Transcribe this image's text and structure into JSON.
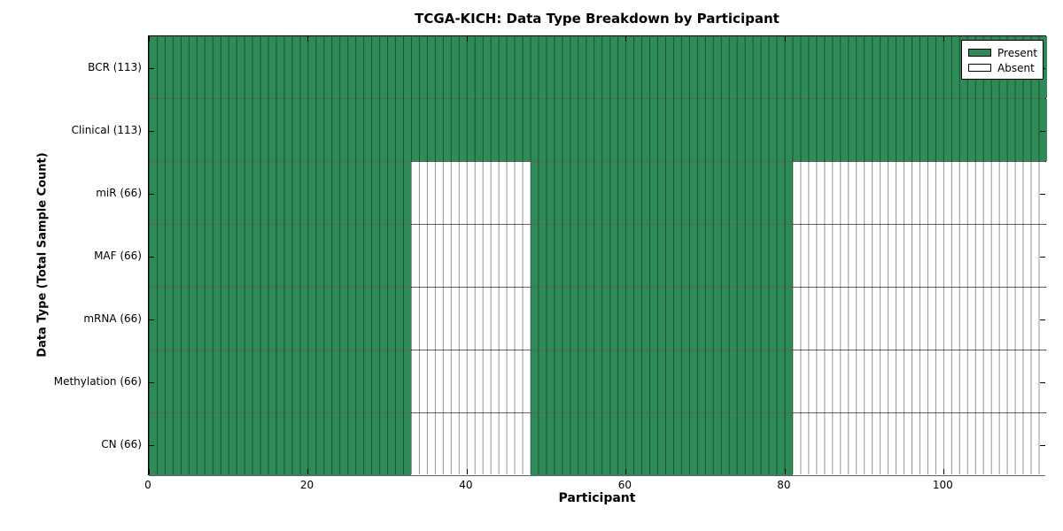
{
  "page": {
    "background": "#ffffff"
  },
  "chart_data": {
    "type": "heatmap",
    "title": "TCGA-KICH: Data Type Breakdown by Participant",
    "xlabel": "Participant",
    "ylabel": "Data Type (Total Sample Count)",
    "x_range": [
      0,
      113
    ],
    "n_participants": 113,
    "grid": "per-cell vertical lines and row divider lines",
    "x_ticks": [
      {
        "value": 0,
        "label": "0"
      },
      {
        "value": 20,
        "label": "20"
      },
      {
        "value": 40,
        "label": "40"
      },
      {
        "value": 60,
        "label": "60"
      },
      {
        "value": 80,
        "label": "80"
      },
      {
        "value": 100,
        "label": "100"
      }
    ],
    "rows": [
      {
        "label": "BCR (113)",
        "data_type": "BCR",
        "total_samples": 113,
        "segments": [
          {
            "state": "present",
            "from": 0,
            "to": 113
          }
        ]
      },
      {
        "label": "Clinical (113)",
        "data_type": "Clinical",
        "total_samples": 113,
        "segments": [
          {
            "state": "present",
            "from": 0,
            "to": 113
          }
        ]
      },
      {
        "label": "miR (66)",
        "data_type": "miR",
        "total_samples": 66,
        "segments": [
          {
            "state": "present",
            "from": 0,
            "to": 33
          },
          {
            "state": "absent",
            "from": 33,
            "to": 48
          },
          {
            "state": "present",
            "from": 48,
            "to": 81
          },
          {
            "state": "absent",
            "from": 81,
            "to": 113
          }
        ]
      },
      {
        "label": "MAF (66)",
        "data_type": "MAF",
        "total_samples": 66,
        "segments": [
          {
            "state": "present",
            "from": 0,
            "to": 33
          },
          {
            "state": "absent",
            "from": 33,
            "to": 48
          },
          {
            "state": "present",
            "from": 48,
            "to": 81
          },
          {
            "state": "absent",
            "from": 81,
            "to": 113
          }
        ]
      },
      {
        "label": "mRNA (66)",
        "data_type": "mRNA",
        "total_samples": 66,
        "segments": [
          {
            "state": "present",
            "from": 0,
            "to": 33
          },
          {
            "state": "absent",
            "from": 33,
            "to": 48
          },
          {
            "state": "present",
            "from": 48,
            "to": 81
          },
          {
            "state": "absent",
            "from": 81,
            "to": 113
          }
        ]
      },
      {
        "label": "Methylation (66)",
        "data_type": "Methylation",
        "total_samples": 66,
        "segments": [
          {
            "state": "present",
            "from": 0,
            "to": 33
          },
          {
            "state": "absent",
            "from": 33,
            "to": 48
          },
          {
            "state": "present",
            "from": 48,
            "to": 81
          },
          {
            "state": "absent",
            "from": 81,
            "to": 113
          }
        ]
      },
      {
        "label": "CN (66)",
        "data_type": "CN",
        "total_samples": 66,
        "segments": [
          {
            "state": "present",
            "from": 0,
            "to": 33
          },
          {
            "state": "absent",
            "from": 33,
            "to": 48
          },
          {
            "state": "present",
            "from": 48,
            "to": 81
          },
          {
            "state": "absent",
            "from": 81,
            "to": 113
          }
        ]
      }
    ],
    "colors": {
      "present": "#2e8b57",
      "absent": "#ffffff",
      "cell_edge": "rgba(0,0,0,0.42)",
      "axis": "#000000"
    },
    "legend": {
      "position": "upper right",
      "entries": [
        {
          "label": "Present",
          "state": "present",
          "color": "#2e8b57"
        },
        {
          "label": "Absent",
          "state": "absent",
          "color": "#ffffff"
        }
      ]
    }
  }
}
